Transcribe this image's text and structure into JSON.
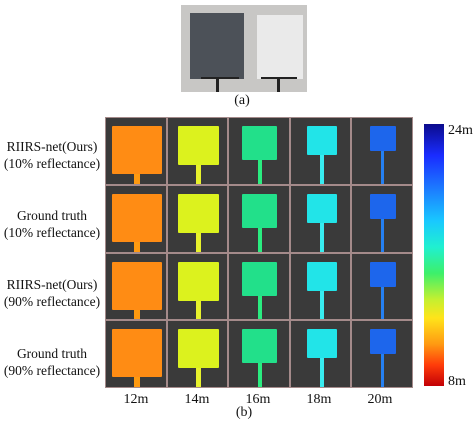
{
  "captions": {
    "a": "(a)",
    "b": "(b)"
  },
  "rows": [
    {
      "line1": "RIIRS-net(Ours)",
      "line2": "(10% reflectance)"
    },
    {
      "line1": "Ground truth",
      "line2": "(10% reflectance)"
    },
    {
      "line1": "RIIRS-net(Ours)",
      "line2": "(90% reflectance)"
    },
    {
      "line1": "Ground truth",
      "line2": "(90% reflectance)"
    }
  ],
  "columns": [
    "12m",
    "14m",
    "16m",
    "18m",
    "20m"
  ],
  "colorbar": {
    "max_label": "24m",
    "min_label": "8m"
  },
  "target_colors": [
    "#ff8c14",
    "#dcf21e",
    "#22e08a",
    "#22e4e8",
    "#1d66ec"
  ],
  "stem_colors": [
    "#ff9a10",
    "#e8f22c",
    "#2aec80",
    "#38ecf0",
    "#2580f2"
  ]
}
